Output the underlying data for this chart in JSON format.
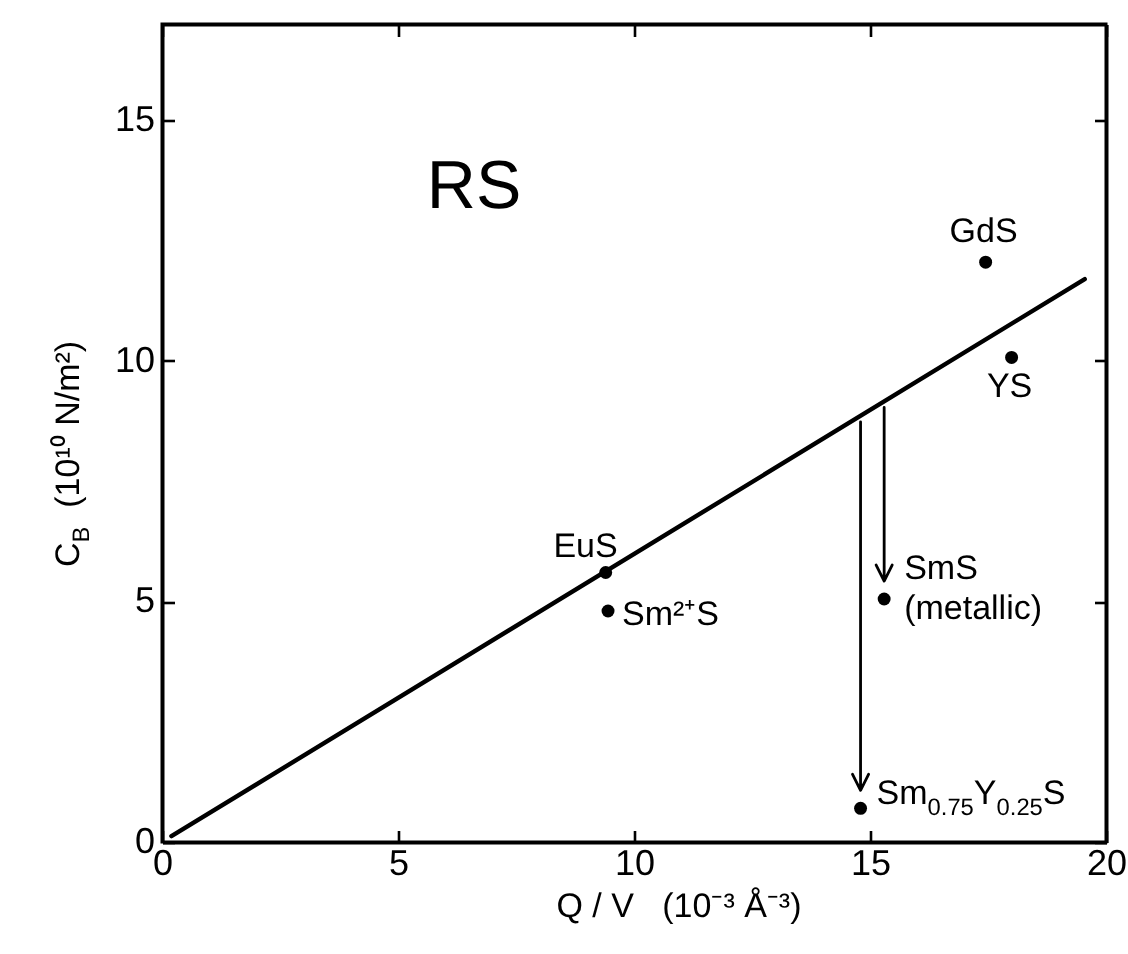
{
  "chart_data": {
    "type": "scatter",
    "xlabel": "Q / V   (10⁻³ Å⁻³)",
    "ylabel": "C$_{B}$  (10¹⁰ N/m²)",
    "xlim": [
      0,
      20
    ],
    "ylim": [
      0,
      17
    ],
    "xticks": [
      0,
      5,
      10,
      15,
      20
    ],
    "yticks": [
      0,
      5,
      10,
      15
    ],
    "marker": "circle",
    "series": [
      {
        "type": "line",
        "color": "#000000",
        "marker": "none",
        "x": [
          0.2,
          19.55
        ],
        "values": [
          0.12,
          11.7
        ]
      },
      {
        "color": "#000000",
        "x": [
          17.45,
          18.0,
          9.4,
          9.45
        ],
        "values": [
          12.05,
          10.07,
          5.6,
          4.8
        ]
      },
      {
        "color": "#000000",
        "x": [
          15.3,
          14.8
        ],
        "values": [
          5.05,
          0.7
        ]
      }
    ],
    "annotations": [
      "RS",
      {
        "text": "GdS",
        "x": 17.45,
        "y": 12.05
      },
      {
        "text": "YS",
        "x": 18.0,
        "y": 10.07
      },
      {
        "text": "EuS",
        "x": 9.4,
        "y": 5.6
      },
      {
        "text": "Sm²⁺S",
        "x": 9.45,
        "y": 4.8
      },
      {
        "text": "SmS\n(metallic)",
        "x": 15.3,
        "y": 5.05
      },
      {
        "text": "Sm$_{0.75}$Y$_{0.25}$S",
        "x": 14.8,
        "y": 0.7
      }
    ]
  }
}
